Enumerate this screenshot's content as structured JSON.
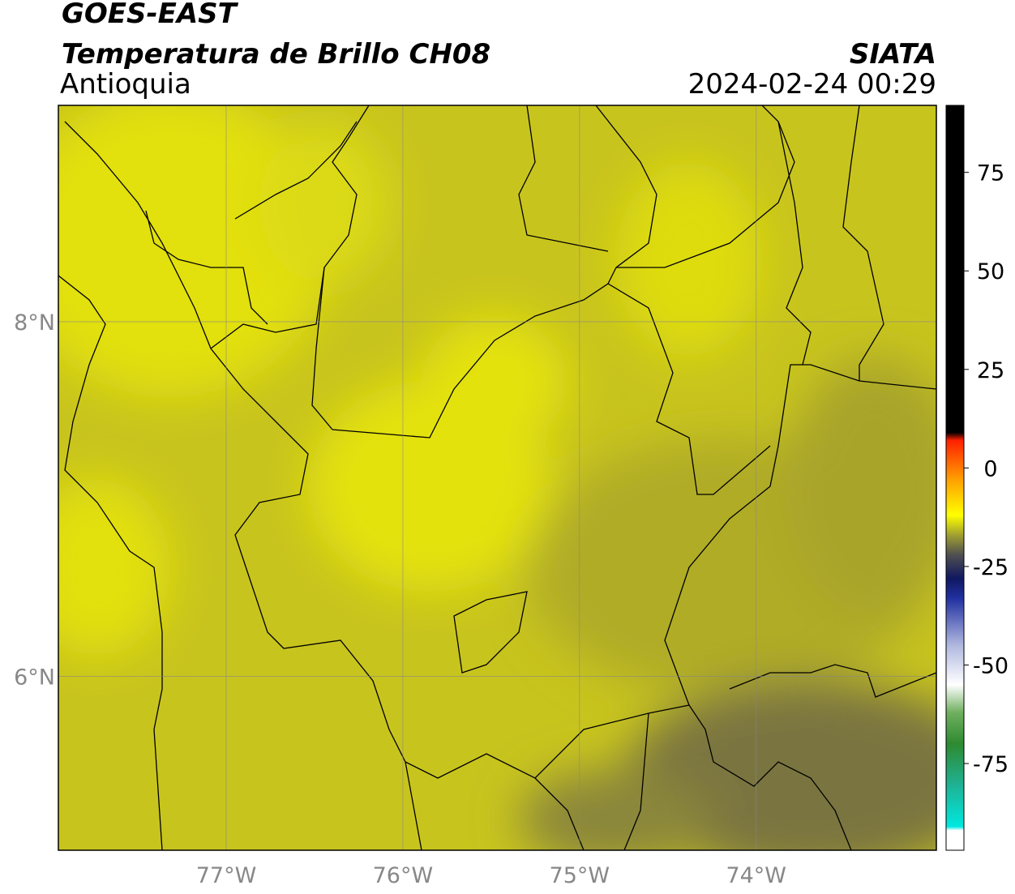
{
  "chart_data": {
    "type": "map",
    "title": "GOES-EAST",
    "subtitle": "Temperatura de Brillo CH08",
    "region": "Antioquia",
    "source": "SIATA",
    "timestamp": "2024-02-24 00:29",
    "xlim": [
      -77.95,
      -72.98
    ],
    "ylim": [
      5.02,
      9.22
    ],
    "xticks": [
      {
        "value": -77,
        "label": "77°W"
      },
      {
        "value": -76,
        "label": "76°W"
      },
      {
        "value": -75,
        "label": "75°W"
      },
      {
        "value": -74,
        "label": "74°W"
      }
    ],
    "yticks": [
      {
        "value": 8,
        "label": "8°N"
      },
      {
        "value": 6,
        "label": "6°N"
      }
    ],
    "grid": true,
    "colorbar": {
      "clim": [
        -97,
        92
      ],
      "ticks": [
        75,
        50,
        25,
        0,
        -25,
        -50,
        -75
      ],
      "colormap": [
        [
          -97,
          "#ffffff"
        ],
        [
          -92,
          "#ffffff"
        ],
        [
          -91,
          "#00e8e0"
        ],
        [
          -80,
          "#20b090"
        ],
        [
          -70,
          "#2e8a30"
        ],
        [
          -62,
          "#70b060"
        ],
        [
          -55,
          "#ffffff"
        ],
        [
          -45,
          "#b0b8e0"
        ],
        [
          -33,
          "#2030a0"
        ],
        [
          -28,
          "#101860"
        ],
        [
          -22,
          "#505050"
        ],
        [
          -17,
          "#a0a030"
        ],
        [
          -12,
          "#ffff00"
        ],
        [
          -3,
          "#ffa000"
        ],
        [
          7,
          "#ff2000"
        ],
        [
          9,
          "#000000"
        ],
        [
          92,
          "#000000"
        ]
      ]
    }
  }
}
